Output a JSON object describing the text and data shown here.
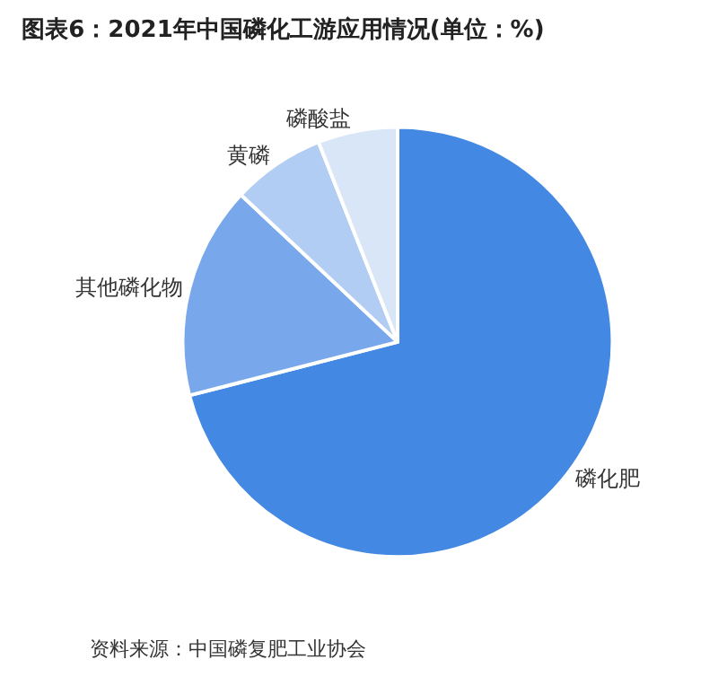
{
  "chart_data": {
    "type": "pie",
    "title": "图表6：2021年中国磷化工游应用情况(单位：%)",
    "categories": [
      "磷化肥",
      "其他磷化物",
      "黄磷",
      "磷酸盐"
    ],
    "values": [
      71,
      16,
      7,
      6
    ],
    "colors": [
      "#4388e2",
      "#78a8eb",
      "#b1cdf3",
      "#d9e6f8"
    ],
    "annotations": [
      "资料来源：中国磷复肥工业协会"
    ]
  }
}
